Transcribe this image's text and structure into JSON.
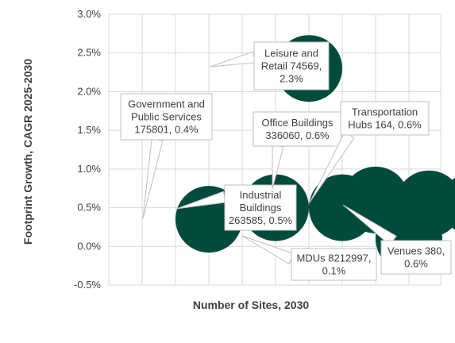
{
  "chart_data": {
    "type": "bubble",
    "xlabel": "Number of Sites, 2030",
    "ylabel": "Footprint Growth, CAGR 2025-2030",
    "ylim": [
      -0.005,
      0.03
    ],
    "ytick_labels": [
      "-0.5%",
      "0.0%",
      "0.5%",
      "1.0%",
      "1.5%",
      "2.0%",
      "2.5%",
      "3.0%"
    ],
    "grid": true,
    "bubble_color": "#004B3C",
    "points": [
      {
        "x_index": 1.0,
        "y": 0.0035,
        "label_lines": [
          "Government and",
          "Public Services",
          "175801, 0.4%"
        ]
      },
      {
        "x_index": 2.0,
        "y": 0.005,
        "label_lines": []
      },
      {
        "x_index": 4.0,
        "y": 0.001,
        "label_lines": [
          "MDUs 8212997,",
          "0.1%"
        ]
      },
      {
        "x_index": 2.5,
        "y": 0.023,
        "label_lines": [
          "Leisure and",
          "Retail 74569,",
          "2.3%"
        ]
      },
      {
        "x_index": 3.0,
        "y": 0.005,
        "label_lines": [
          "Industrial",
          "Buildings",
          "263585, 0.5%"
        ]
      },
      {
        "x_index": 3.5,
        "y": 0.006,
        "label_lines": [
          "Office Buildings",
          "336060, 0.6%"
        ]
      },
      {
        "x_index": 4.3,
        "y": 0.0055,
        "label_lines": [
          "Transportation",
          "Hubs 164, 0.6%"
        ]
      },
      {
        "x_index": 5.0,
        "y": 0.0055,
        "label_lines": [
          "Venues 380,",
          "0.6%"
        ]
      }
    ]
  }
}
